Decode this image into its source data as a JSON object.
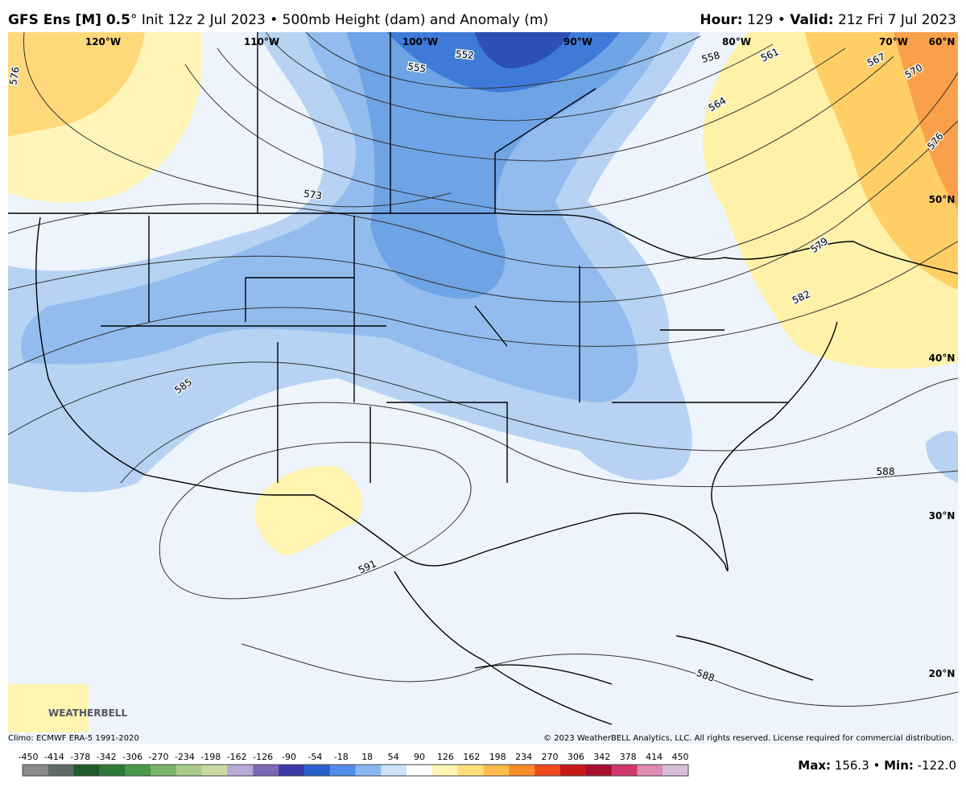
{
  "header": {
    "left": [
      "GFS Ens [M] 0.5",
      "° Init 12z 2 Jul 2023 • 500mb Height (dam) and Anomaly (m)"
    ],
    "right": [
      "Hour:",
      " 129 • ",
      "Valid:",
      " 21z Fri 7 Jul 2023"
    ]
  },
  "map": {
    "longitudes": [
      "120°W",
      "110°W",
      "100°W",
      "90°W",
      "80°W",
      "70°W"
    ],
    "latitudes": [
      "60°N",
      "50°N",
      "40°N",
      "30°N",
      "20°N"
    ],
    "contour_labels": [
      "576",
      "573",
      "552",
      "555",
      "558",
      "561",
      "564",
      "567",
      "570",
      "576",
      "579",
      "582",
      "585",
      "588",
      "591",
      "588"
    ],
    "logo": "WEATHERBELL"
  },
  "footer": {
    "climo": "Climo: ECMWF ERA-5 1991-2020",
    "copyright": "© 2023 WeatherBELL Analytics, LLC. All rights reserved. License required for commercial distribution.",
    "stats": [
      "Max:",
      " 156.3 • ",
      "Min:",
      " -122.0"
    ]
  },
  "colorbar": {
    "ticks": [
      "-450",
      "-414",
      "-378",
      "-342",
      "-306",
      "-270",
      "-234",
      "-198",
      "-162",
      "-126",
      "-90",
      "-54",
      "-18",
      "18",
      "54",
      "90",
      "126",
      "162",
      "198",
      "234",
      "270",
      "306",
      "342",
      "378",
      "414",
      "450"
    ],
    "colors": [
      "#8a8a8a",
      "#5f6b64",
      "#1e5a2c",
      "#2e7a3a",
      "#4b9a4b",
      "#7ab46a",
      "#a9cc8a",
      "#c9d9a4",
      "#b7a9d4",
      "#7d68b7",
      "#3d3aa8",
      "#2a5fce",
      "#4f8de6",
      "#8ab7f0",
      "#cfe2f8",
      "#ffffff",
      "#fff4b0",
      "#ffe07a",
      "#ffbb4a",
      "#fb8c2a",
      "#ef4a1c",
      "#c71818",
      "#a80e2e",
      "#d0386a",
      "#e089b4",
      "#d8bfd8"
    ]
  }
}
